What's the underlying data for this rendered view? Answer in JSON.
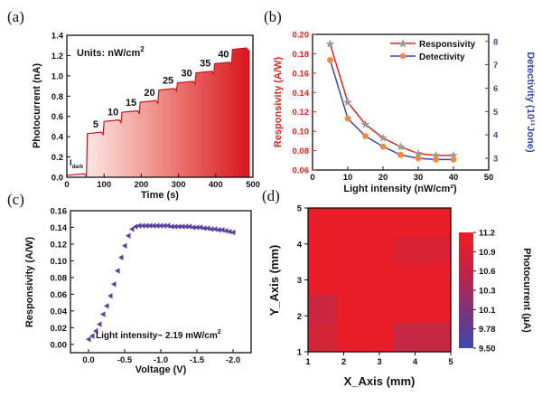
{
  "panels": {
    "a": {
      "tag": "(a)",
      "units_prefix": "Units: nW/cm",
      "units_sup": "2",
      "dark_label": "I",
      "dark_sub": "dark"
    },
    "b": {
      "tag": "(b)"
    },
    "c": {
      "tag": "(c)"
    },
    "d": {
      "tag": "(d)"
    }
  },
  "colors": {
    "red": "#e0241c",
    "blue": "#3a46a8",
    "orange": "#f08a3c",
    "gray": "#9a9a9a",
    "purple": "#5b3fa0",
    "heat_low": "#3d4aa5",
    "heat_high": "#ee1d24"
  },
  "chart_data": [
    {
      "id": "a",
      "type": "area",
      "xlabel": "Time (s)",
      "ylabel": "Photocurrent (nA)",
      "xlim": [
        0,
        500
      ],
      "ylim": [
        0.0,
        1.4
      ],
      "xticks": [
        "0",
        "100",
        "200",
        "300",
        "400",
        "500"
      ],
      "yticks": [
        "0.0",
        "0.2",
        "0.4",
        "0.6",
        "0.8",
        "1.0",
        "1.2",
        "1.4"
      ],
      "steps": [
        {
          "t_on": 0,
          "level": 0.02,
          "label": ""
        },
        {
          "t_on": 55,
          "level": 0.43,
          "label": "5"
        },
        {
          "t_on": 100,
          "level": 0.55,
          "label": "10"
        },
        {
          "t_on": 148,
          "level": 0.64,
          "label": "15"
        },
        {
          "t_on": 197,
          "level": 0.74,
          "label": "20"
        },
        {
          "t_on": 247,
          "level": 0.86,
          "label": "25"
        },
        {
          "t_on": 297,
          "level": 0.93,
          "label": "30"
        },
        {
          "t_on": 347,
          "level": 1.03,
          "label": "35"
        },
        {
          "t_on": 397,
          "level": 1.12,
          "label": "40"
        },
        {
          "t_on": 445,
          "level": 1.26,
          "label": ""
        }
      ],
      "end_t": 490
    },
    {
      "id": "b",
      "type": "line",
      "xlabel": "Light intensity (nW/cm²)",
      "ylabel": "Responsivity (A/W)",
      "y2label": "Detectivity (10¹¹Jone)",
      "xlim": [
        0,
        50
      ],
      "ylim": [
        0.06,
        0.2
      ],
      "y2lim": [
        2.5,
        8.3
      ],
      "xticks": [
        "0",
        "10",
        "20",
        "30",
        "40",
        "50"
      ],
      "yticks": [
        "0.06",
        "0.08",
        "0.10",
        "0.12",
        "0.14",
        "0.16",
        "0.18",
        "0.20"
      ],
      "y2ticks": [
        "3",
        "4",
        "5",
        "6",
        "7",
        "8"
      ],
      "x": [
        5,
        10,
        15,
        20,
        25,
        30,
        35,
        40
      ],
      "series": [
        {
          "name": "Responsivity",
          "axis": "left",
          "values": [
            0.19,
            0.13,
            0.107,
            0.093,
            0.084,
            0.077,
            0.075,
            0.075
          ]
        },
        {
          "name": "Detectivity",
          "axis": "right",
          "values": [
            7.2,
            4.7,
            3.95,
            3.5,
            3.15,
            3.0,
            2.95,
            2.95
          ]
        }
      ],
      "legend": "top-right"
    },
    {
      "id": "c",
      "type": "scatter",
      "xlabel": "Voltage (V)",
      "ylabel": "Responsivity (A/W)",
      "xlim": [
        0.25,
        -2.25
      ],
      "ylim": [
        -0.01,
        0.16
      ],
      "xticks": [
        "0.0",
        "-0.5",
        "-1.0",
        "-1.5",
        "-2.0"
      ],
      "yticks": [
        "0.00",
        "0.02",
        "0.04",
        "0.06",
        "0.08",
        "0.10",
        "0.12",
        "0.14",
        "0.16"
      ],
      "x": [
        0.0,
        -0.05,
        -0.1,
        -0.15,
        -0.2,
        -0.25,
        -0.3,
        -0.35,
        -0.4,
        -0.45,
        -0.5,
        -0.55,
        -0.6,
        -0.65,
        -0.7,
        -0.75,
        -0.8,
        -0.85,
        -0.9,
        -0.95,
        -1.0,
        -1.05,
        -1.1,
        -1.15,
        -1.2,
        -1.25,
        -1.3,
        -1.35,
        -1.4,
        -1.45,
        -1.5,
        -1.55,
        -1.6,
        -1.65,
        -1.7,
        -1.75,
        -1.8,
        -1.85,
        -1.9,
        -1.95,
        -2.0
      ],
      "values": [
        0.006,
        0.01,
        0.016,
        0.024,
        0.036,
        0.046,
        0.058,
        0.072,
        0.088,
        0.104,
        0.118,
        0.13,
        0.138,
        0.141,
        0.142,
        0.142,
        0.142,
        0.142,
        0.142,
        0.142,
        0.142,
        0.142,
        0.142,
        0.141,
        0.141,
        0.141,
        0.141,
        0.141,
        0.141,
        0.14,
        0.14,
        0.14,
        0.139,
        0.139,
        0.138,
        0.138,
        0.137,
        0.137,
        0.136,
        0.135,
        0.134
      ],
      "annotation": "Light intensity~ 2.19 mW/cm",
      "annotation_sup": "2"
    },
    {
      "id": "d",
      "type": "heatmap",
      "xlabel": "X_Axis (mm)",
      "ylabel": "Y_Axis (mm)",
      "xlim": [
        1,
        5
      ],
      "ylim": [
        1,
        5
      ],
      "xticks": [
        "1",
        "2",
        "3",
        "4",
        "5"
      ],
      "yticks": [
        "1",
        "2",
        "3",
        "4",
        "5"
      ],
      "colorbar_label": "Photocurrent (µA)",
      "colorbar_ticks": [
        "11.2",
        "10.9",
        "10.6",
        "10.3",
        "10.1",
        "9.78",
        "9.50"
      ],
      "vmin": 9.5,
      "vmax": 11.2,
      "rows_top_to_bottom": [
        [
          11.15,
          11.15,
          11.15,
          11.15,
          11.15
        ],
        [
          11.15,
          11.15,
          11.15,
          11.0,
          11.0
        ],
        [
          11.15,
          11.15,
          11.15,
          11.15,
          11.15
        ],
        [
          10.85,
          11.15,
          11.15,
          11.15,
          11.15
        ],
        [
          10.95,
          11.15,
          11.15,
          10.8,
          10.8
        ]
      ]
    }
  ]
}
